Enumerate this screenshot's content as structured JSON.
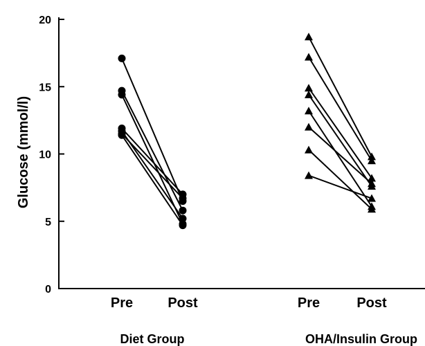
{
  "chart_data": {
    "type": "scatter",
    "subtype": "paired-line",
    "title": "",
    "ylabel": "Glucose (mmol/l)",
    "xlabel": "",
    "ylim": [
      0,
      20
    ],
    "yticks": [
      0,
      5,
      10,
      15,
      20
    ],
    "grid": false,
    "legend": "none",
    "groups": [
      {
        "name": "Diet Group",
        "marker": "circle",
        "categories": [
          "Pre",
          "Post"
        ],
        "pairs": [
          {
            "pre": 17.1,
            "post": 6.5
          },
          {
            "pre": 14.7,
            "post": 5.8
          },
          {
            "pre": 14.4,
            "post": 4.8
          },
          {
            "pre": 11.9,
            "post": 7.0
          },
          {
            "pre": 11.7,
            "post": 5.2
          },
          {
            "pre": 11.5,
            "post": 6.7
          },
          {
            "pre": 11.4,
            "post": 4.7
          }
        ]
      },
      {
        "name": "OHA/Insulin Group",
        "marker": "triangle",
        "categories": [
          "Pre",
          "Post"
        ],
        "pairs": [
          {
            "pre": 18.7,
            "post": 9.8
          },
          {
            "pre": 17.2,
            "post": 9.5
          },
          {
            "pre": 14.9,
            "post": 8.2
          },
          {
            "pre": 14.4,
            "post": 7.6
          },
          {
            "pre": 13.2,
            "post": 6.1
          },
          {
            "pre": 12.0,
            "post": 7.8
          },
          {
            "pre": 10.3,
            "post": 5.9
          },
          {
            "pre": 8.4,
            "post": 6.7
          }
        ]
      }
    ]
  },
  "colors": {
    "foreground": "#000000",
    "background": "#ffffff"
  }
}
